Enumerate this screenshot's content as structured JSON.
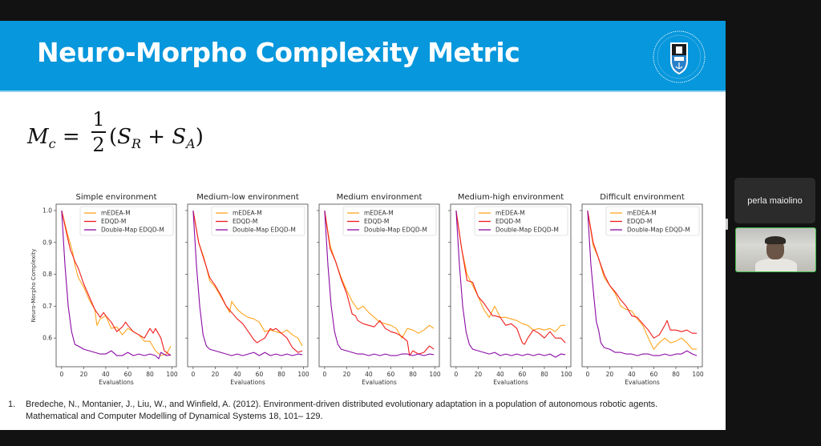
{
  "slide": {
    "title": "Neuro-Morpho Complexity Metric",
    "logo_name": "University of Cape Town crest",
    "logo_text": "University of Cape Town · Universiteit van Kaapstad · iYunivesithi yaseKapa",
    "formula": {
      "lhs": "M",
      "lhs_sub": "c",
      "equals": "=",
      "numerator": "1",
      "denominator": "2",
      "open": "(",
      "s1": "S",
      "s1_sub": "R",
      "plus": "+",
      "s2": "S",
      "s2_sub": "A",
      "close": ")"
    },
    "reference": {
      "number": "1.",
      "line1": "Bredeche, N., Montanier, J., Liu, W., and Winfield, A. (2012). Environment-driven distributed evolutionary adaptation in a population of autonomous robotic agents.",
      "line2": "Mathematical and Computer Modelling of Dynamical Systems 18, 101– 129."
    }
  },
  "colors": {
    "header": "#0797dc",
    "mEDEA": "#ffa51f",
    "EDQD": "#f01c1c",
    "DoubleMap": "#8b0aa5",
    "active_speaker": "#3dbb4a"
  },
  "participants": {
    "name_tile": "perla maiolino"
  },
  "chart_data": [
    {
      "type": "line",
      "title": "Simple environment",
      "xlabel": "Evaluations",
      "ylabel": "Neuro-Morpho Complexity",
      "xlim": [
        -5,
        104
      ],
      "ylim": [
        0.51,
        1.02
      ],
      "xticks": [
        0,
        20,
        40,
        60,
        80,
        100
      ],
      "yticks": [
        0.6,
        0.7,
        0.8,
        0.9,
        1.0
      ],
      "ytick_labels": [
        "0.6",
        "0.7",
        "0.8",
        "0.9",
        "1.0"
      ],
      "legend": "top-right",
      "series": [
        {
          "name": "mEDEA-M",
          "x": [
            0,
            5,
            10,
            12,
            15,
            20,
            25,
            30,
            32,
            35,
            40,
            45,
            50,
            55,
            60,
            65,
            70,
            75,
            80,
            85,
            90,
            95,
            99
          ],
          "y": [
            1.0,
            0.93,
            0.87,
            0.83,
            0.79,
            0.76,
            0.72,
            0.69,
            0.64,
            0.66,
            0.67,
            0.63,
            0.635,
            0.61,
            0.63,
            0.62,
            0.61,
            0.59,
            0.59,
            0.56,
            0.545,
            0.55,
            0.575
          ]
        },
        {
          "name": "EDQD-M",
          "x": [
            0,
            5,
            8,
            10,
            12,
            15,
            20,
            25,
            30,
            35,
            38,
            40,
            45,
            50,
            55,
            58,
            60,
            65,
            70,
            75,
            80,
            83,
            85,
            90,
            93,
            95,
            99
          ],
          "y": [
            1.0,
            0.92,
            0.875,
            0.86,
            0.84,
            0.82,
            0.77,
            0.73,
            0.69,
            0.665,
            0.68,
            0.67,
            0.65,
            0.62,
            0.635,
            0.65,
            0.64,
            0.62,
            0.61,
            0.6,
            0.63,
            0.615,
            0.63,
            0.6,
            0.56,
            0.555,
            0.545
          ]
        },
        {
          "name": "Double-Map EDQD-M",
          "x": [
            0,
            3,
            6,
            9,
            12,
            15,
            20,
            25,
            30,
            35,
            40,
            45,
            50,
            55,
            60,
            65,
            70,
            75,
            80,
            85,
            88,
            90,
            95,
            99
          ],
          "y": [
            1.0,
            0.83,
            0.7,
            0.62,
            0.58,
            0.575,
            0.565,
            0.56,
            0.555,
            0.55,
            0.55,
            0.56,
            0.545,
            0.545,
            0.555,
            0.545,
            0.55,
            0.545,
            0.55,
            0.545,
            0.535,
            0.555,
            0.545,
            0.547
          ]
        }
      ]
    },
    {
      "type": "line",
      "title": "Medium-low environment",
      "xlabel": "Evaluations",
      "xlim": [
        -5,
        104
      ],
      "ylim": [
        0.51,
        1.02
      ],
      "xticks": [
        0,
        20,
        40,
        60,
        80,
        100
      ],
      "yticks": [
        0.6,
        0.7,
        0.8,
        0.9,
        1.0
      ],
      "legend": "top-right",
      "series": [
        {
          "name": "mEDEA-M",
          "x": [
            0,
            5,
            10,
            15,
            20,
            25,
            30,
            33,
            35,
            40,
            45,
            50,
            55,
            60,
            65,
            70,
            75,
            80,
            85,
            90,
            95,
            99
          ],
          "y": [
            1.0,
            0.9,
            0.85,
            0.78,
            0.76,
            0.73,
            0.7,
            0.68,
            0.715,
            0.69,
            0.675,
            0.665,
            0.66,
            0.65,
            0.62,
            0.625,
            0.62,
            0.615,
            0.625,
            0.61,
            0.6,
            0.575
          ]
        },
        {
          "name": "EDQD-M",
          "x": [
            0,
            5,
            10,
            15,
            20,
            25,
            30,
            35,
            40,
            45,
            50,
            55,
            58,
            60,
            65,
            70,
            72,
            75,
            80,
            85,
            90,
            95,
            99
          ],
          "y": [
            1.0,
            0.9,
            0.845,
            0.79,
            0.765,
            0.735,
            0.7,
            0.68,
            0.66,
            0.645,
            0.62,
            0.595,
            0.585,
            0.59,
            0.6,
            0.63,
            0.625,
            0.63,
            0.615,
            0.6,
            0.57,
            0.555,
            0.56
          ]
        },
        {
          "name": "Double-Map EDQD-M",
          "x": [
            0,
            3,
            6,
            9,
            12,
            15,
            20,
            25,
            30,
            35,
            40,
            45,
            50,
            55,
            60,
            65,
            70,
            75,
            80,
            85,
            90,
            95,
            99
          ],
          "y": [
            1.0,
            0.83,
            0.7,
            0.61,
            0.575,
            0.565,
            0.56,
            0.555,
            0.55,
            0.545,
            0.55,
            0.545,
            0.55,
            0.555,
            0.545,
            0.555,
            0.545,
            0.55,
            0.545,
            0.55,
            0.545,
            0.55,
            0.548
          ]
        }
      ]
    },
    {
      "type": "line",
      "title": "Medium environment",
      "xlabel": "Evaluations",
      "xlim": [
        -5,
        104
      ],
      "ylim": [
        0.51,
        1.02
      ],
      "xticks": [
        0,
        20,
        40,
        60,
        80,
        100
      ],
      "yticks": [
        0.6,
        0.7,
        0.8,
        0.9,
        1.0
      ],
      "legend": "top-right",
      "series": [
        {
          "name": "mEDEA-M",
          "x": [
            0,
            5,
            10,
            15,
            20,
            25,
            30,
            35,
            40,
            45,
            50,
            55,
            60,
            65,
            70,
            75,
            80,
            85,
            90,
            95,
            99
          ],
          "y": [
            1.0,
            0.89,
            0.84,
            0.79,
            0.75,
            0.715,
            0.69,
            0.7,
            0.68,
            0.665,
            0.65,
            0.645,
            0.64,
            0.63,
            0.6,
            0.63,
            0.625,
            0.615,
            0.625,
            0.64,
            0.63
          ]
        },
        {
          "name": "EDQD-M",
          "x": [
            0,
            5,
            10,
            15,
            20,
            25,
            28,
            30,
            35,
            40,
            45,
            50,
            55,
            60,
            65,
            70,
            75,
            77,
            80,
            85,
            90,
            95,
            99
          ],
          "y": [
            1.0,
            0.88,
            0.84,
            0.785,
            0.74,
            0.675,
            0.67,
            0.655,
            0.645,
            0.64,
            0.635,
            0.655,
            0.63,
            0.62,
            0.615,
            0.605,
            0.59,
            0.545,
            0.56,
            0.55,
            0.555,
            0.575,
            0.565
          ]
        },
        {
          "name": "Double-Map EDQD-M",
          "x": [
            0,
            3,
            6,
            9,
            12,
            15,
            20,
            25,
            30,
            35,
            40,
            45,
            50,
            55,
            60,
            65,
            70,
            75,
            80,
            85,
            90,
            95,
            99
          ],
          "y": [
            1.0,
            0.83,
            0.7,
            0.62,
            0.58,
            0.565,
            0.56,
            0.555,
            0.55,
            0.55,
            0.545,
            0.55,
            0.545,
            0.55,
            0.545,
            0.545,
            0.55,
            0.55,
            0.545,
            0.55,
            0.545,
            0.55,
            0.548
          ]
        }
      ]
    },
    {
      "type": "line",
      "title": "Medium-high environment",
      "xlabel": "Evaluations",
      "xlim": [
        -5,
        104
      ],
      "ylim": [
        0.51,
        1.02
      ],
      "xticks": [
        0,
        20,
        40,
        60,
        80,
        100
      ],
      "yticks": [
        0.6,
        0.7,
        0.8,
        0.9,
        1.0
      ],
      "legend": "top-right",
      "series": [
        {
          "name": "mEDEA-M",
          "x": [
            0,
            5,
            10,
            15,
            20,
            25,
            30,
            35,
            40,
            45,
            50,
            55,
            60,
            65,
            70,
            75,
            80,
            85,
            90,
            95,
            99
          ],
          "y": [
            1.0,
            0.88,
            0.8,
            0.765,
            0.73,
            0.69,
            0.665,
            0.7,
            0.665,
            0.665,
            0.66,
            0.655,
            0.645,
            0.64,
            0.625,
            0.63,
            0.625,
            0.63,
            0.62,
            0.64,
            0.64
          ]
        },
        {
          "name": "EDQD-M",
          "x": [
            0,
            5,
            10,
            15,
            20,
            25,
            30,
            33,
            35,
            40,
            45,
            50,
            55,
            60,
            62,
            65,
            70,
            75,
            80,
            85,
            90,
            95,
            99
          ],
          "y": [
            1.0,
            0.88,
            0.78,
            0.775,
            0.73,
            0.71,
            0.685,
            0.67,
            0.67,
            0.665,
            0.64,
            0.645,
            0.63,
            0.585,
            0.58,
            0.6,
            0.625,
            0.615,
            0.6,
            0.62,
            0.6,
            0.6,
            0.585
          ]
        },
        {
          "name": "Double-Map EDQD-M",
          "x": [
            0,
            3,
            6,
            9,
            12,
            15,
            20,
            25,
            30,
            35,
            40,
            45,
            50,
            55,
            60,
            65,
            70,
            75,
            80,
            85,
            90,
            95,
            99
          ],
          "y": [
            1.0,
            0.83,
            0.7,
            0.62,
            0.58,
            0.565,
            0.56,
            0.555,
            0.55,
            0.555,
            0.545,
            0.55,
            0.545,
            0.55,
            0.545,
            0.55,
            0.545,
            0.55,
            0.545,
            0.55,
            0.54,
            0.55,
            0.548
          ]
        }
      ]
    },
    {
      "type": "line",
      "title": "Difficult environment",
      "xlabel": "Evaluations",
      "xlim": [
        -5,
        104
      ],
      "ylim": [
        0.51,
        1.02
      ],
      "xticks": [
        0,
        20,
        40,
        60,
        80,
        100
      ],
      "yticks": [
        0.6,
        0.7,
        0.8,
        0.9,
        1.0
      ],
      "legend": "top-right",
      "series": [
        {
          "name": "mEDEA-M",
          "x": [
            0,
            5,
            10,
            15,
            20,
            25,
            30,
            35,
            40,
            45,
            50,
            55,
            60,
            65,
            70,
            75,
            80,
            85,
            90,
            95,
            99
          ],
          "y": [
            1.0,
            0.89,
            0.85,
            0.79,
            0.765,
            0.74,
            0.7,
            0.69,
            0.685,
            0.66,
            0.64,
            0.6,
            0.565,
            0.585,
            0.6,
            0.585,
            0.59,
            0.6,
            0.585,
            0.565,
            0.565
          ]
        },
        {
          "name": "EDQD-M",
          "x": [
            0,
            5,
            10,
            15,
            20,
            25,
            30,
            35,
            40,
            45,
            50,
            55,
            60,
            65,
            70,
            72,
            75,
            80,
            85,
            90,
            95,
            99
          ],
          "y": [
            1.0,
            0.9,
            0.85,
            0.8,
            0.765,
            0.745,
            0.72,
            0.7,
            0.67,
            0.665,
            0.645,
            0.625,
            0.6,
            0.61,
            0.64,
            0.655,
            0.625,
            0.625,
            0.62,
            0.625,
            0.615,
            0.615
          ]
        },
        {
          "name": "Double-Map EDQD-M",
          "x": [
            0,
            3,
            6,
            8,
            10,
            12,
            15,
            20,
            25,
            30,
            35,
            40,
            45,
            50,
            55,
            60,
            65,
            70,
            75,
            80,
            85,
            90,
            95,
            99
          ],
          "y": [
            1.0,
            0.83,
            0.72,
            0.65,
            0.625,
            0.585,
            0.57,
            0.565,
            0.555,
            0.555,
            0.55,
            0.55,
            0.545,
            0.55,
            0.55,
            0.545,
            0.545,
            0.55,
            0.545,
            0.55,
            0.55,
            0.56,
            0.55,
            0.545
          ]
        }
      ]
    }
  ]
}
